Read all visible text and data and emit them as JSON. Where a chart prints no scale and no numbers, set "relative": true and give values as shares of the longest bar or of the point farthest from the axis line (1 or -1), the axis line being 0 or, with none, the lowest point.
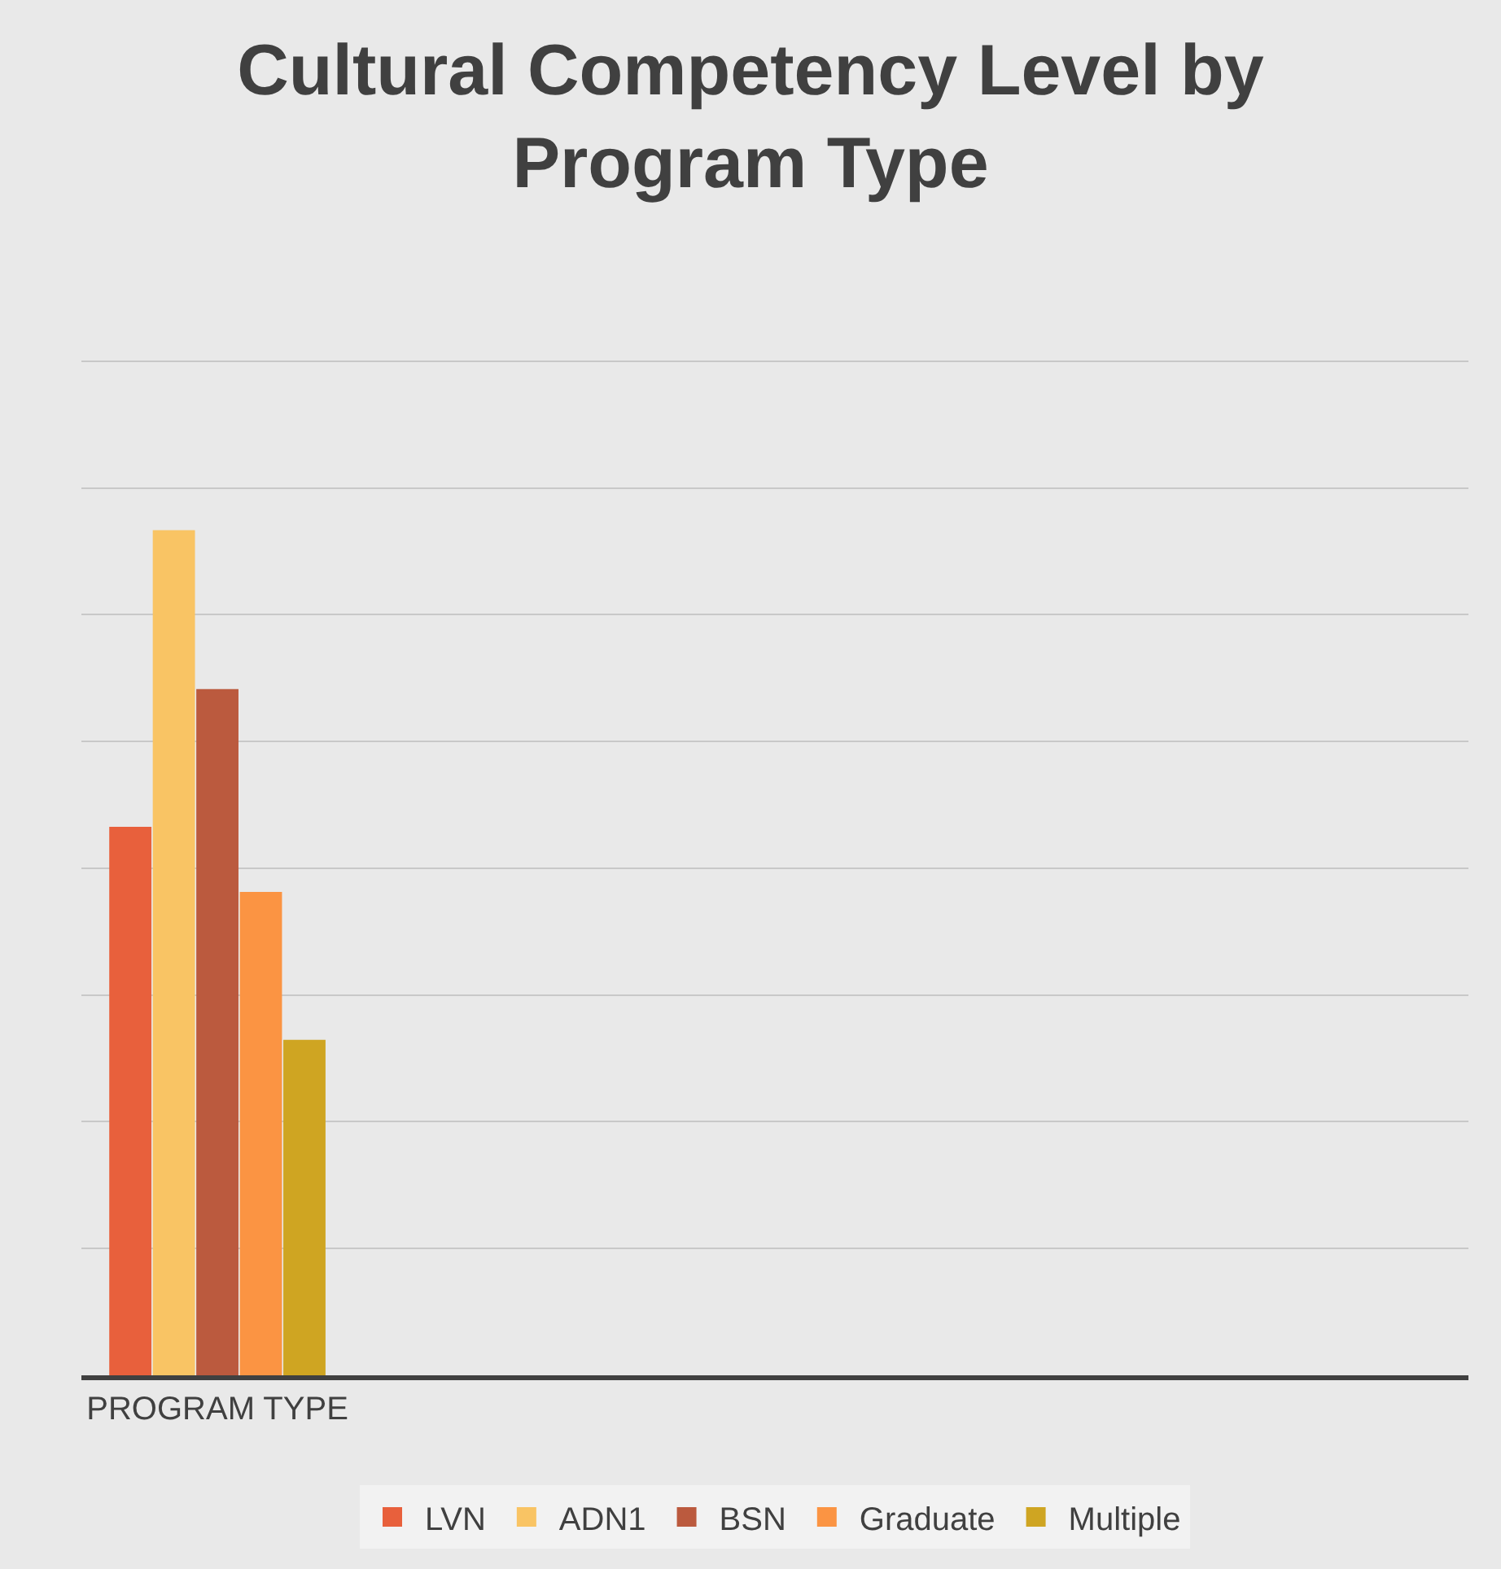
{
  "chart_data": {
    "type": "bar",
    "title": "Cultural Competency Level by Program Type",
    "categories": [
      "PROGRAM TYPE"
    ],
    "relative": true,
    "series": [
      {
        "name": "LVN",
        "color": "#e8603c",
        "values": [
          0.649
        ]
      },
      {
        "name": "ADN1",
        "color": "#f9c464",
        "values": [
          1.0
        ]
      },
      {
        "name": "BSN",
        "color": "#bb5a3e",
        "values": [
          0.812
        ]
      },
      {
        "name": "Graduate",
        "color": "#fb9443",
        "values": [
          0.572
        ]
      },
      {
        "name": "Multiple",
        "color": "#cfa522",
        "values": [
          0.397
        ]
      }
    ],
    "grid": "y",
    "legend": "bottom"
  }
}
